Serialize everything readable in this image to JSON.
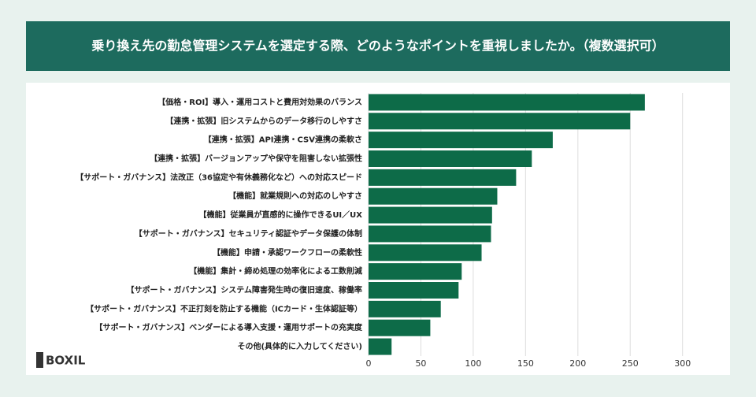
{
  "chart_data": {
    "type": "barh",
    "title": "乗り換え先の勤怠管理システムを選定する際、どのようなポイントを重視しましたか。（複数選択可）",
    "categories": [
      "【価格・ROI】導入・運用コストと費用対効果のバランス",
      "【連携・拡張】旧システムからのデータ移行のしやすさ",
      "【連携・拡張】API連携・CSV連携の柔軟さ",
      "【連携・拡張】バージョンアップや保守を阻害しない拡張性",
      "【サポート・ガバナンス】法改正（36協定や有休義務化など）への対応スピード",
      "【機能】就業規則への対応のしやすさ",
      "【機能】従業員が直感的に操作できるUI／UX",
      "【サポート・ガバナンス】セキュリティ認証やデータ保護の体制",
      "【機能】申請・承認ワークフローの柔軟性",
      "【機能】集計・締め処理の効率化による工数削減",
      "【サポート・ガバナンス】システム障害発生時の復旧速度、稼働率",
      "【サポート・ガバナンス】不正打刻を防止する機能（ICカード・生体認証等）",
      "【サポート・ガバナンス】ベンダーによる導入支援・運用サポートの充実度",
      "その他(具体的に入力してください)"
    ],
    "values": [
      264,
      250,
      176,
      156,
      141,
      123,
      118,
      117,
      108,
      89,
      86,
      69,
      59,
      22
    ],
    "color": "#0d6b48",
    "xlim": [
      0,
      310
    ],
    "xticks": [
      0,
      50,
      100,
      150,
      200,
      250,
      300
    ],
    "grid": true,
    "logo": "BOXIL"
  }
}
